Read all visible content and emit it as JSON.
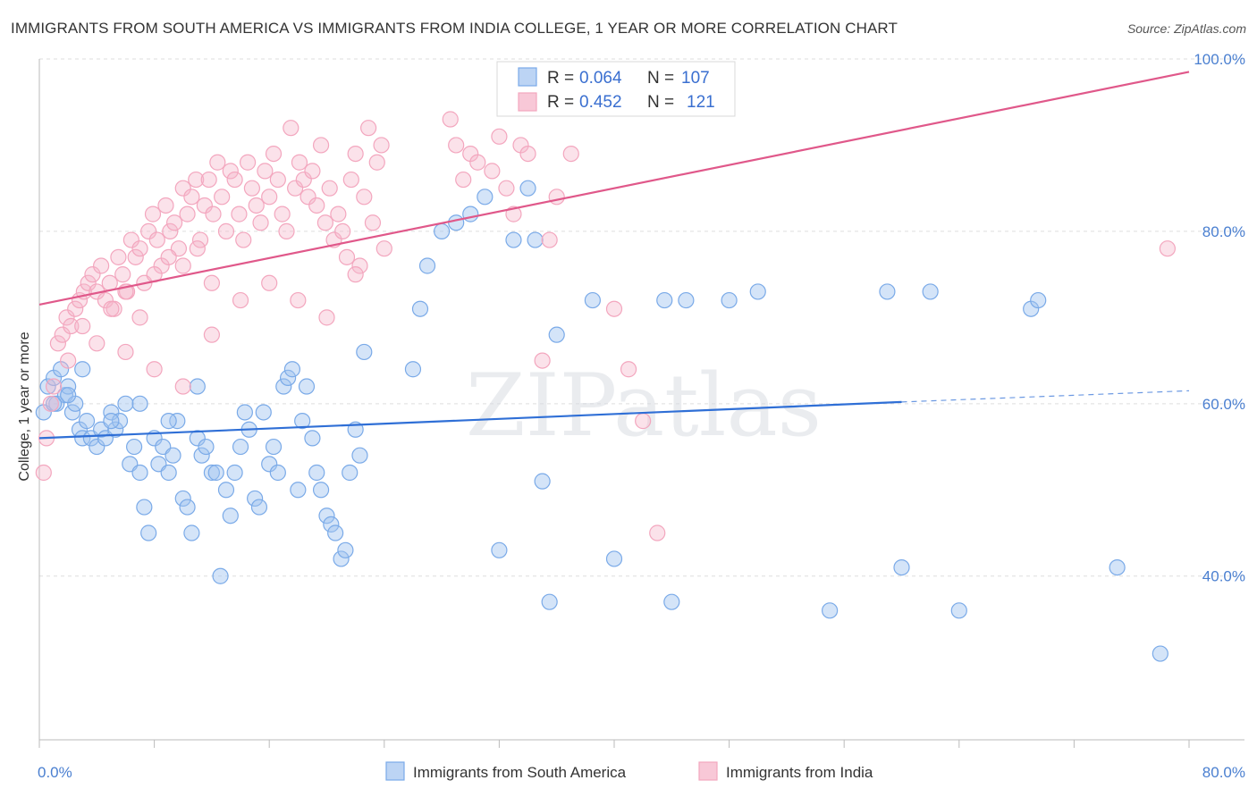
{
  "title": "IMMIGRANTS FROM SOUTH AMERICA VS IMMIGRANTS FROM INDIA COLLEGE, 1 YEAR OR MORE CORRELATION CHART",
  "source": "Source: ZipAtlas.com",
  "watermark": "ZIPatlas",
  "chart_data": {
    "type": "scatter",
    "ylabel": "College, 1 year or more",
    "x_tick_labels": [
      "0.0%",
      "80.0%"
    ],
    "y_tick_labels": [
      "40.0%",
      "60.0%",
      "80.0%",
      "100.0%"
    ],
    "xlim": [
      0,
      80
    ],
    "ylim": [
      21,
      100
    ],
    "legend_position": "top-center",
    "stats": [
      {
        "r_label": "R = ",
        "r_value": "0.064",
        "n_label": "N = ",
        "n_value": "107"
      },
      {
        "r_label": "R = ",
        "r_value": "0.452",
        "n_label": "N = ",
        "n_value": "121"
      }
    ],
    "series": [
      {
        "name": "Immigrants from South America",
        "color": "#7aaae8",
        "line_color": "#2f6fd6",
        "trend": {
          "x0": 0,
          "y0": 56.0,
          "x1": 60,
          "y1": 60.2,
          "dash_to_x": 80,
          "dash_to_y": 61.5
        },
        "points": [
          [
            0.3,
            59
          ],
          [
            0.6,
            62
          ],
          [
            1,
            63
          ],
          [
            1.2,
            60
          ],
          [
            1.5,
            64
          ],
          [
            1.8,
            61
          ],
          [
            2,
            62
          ],
          [
            2.3,
            59
          ],
          [
            2.5,
            60
          ],
          [
            2.8,
            57
          ],
          [
            3,
            56
          ],
          [
            3.3,
            58
          ],
          [
            3.6,
            56
          ],
          [
            4,
            55
          ],
          [
            4.3,
            57
          ],
          [
            4.6,
            56
          ],
          [
            5,
            59
          ],
          [
            5.3,
            57
          ],
          [
            5.6,
            58
          ],
          [
            6,
            60
          ],
          [
            6.3,
            53
          ],
          [
            6.6,
            55
          ],
          [
            7,
            52
          ],
          [
            7.3,
            48
          ],
          [
            7.6,
            45
          ],
          [
            8,
            56
          ],
          [
            8.3,
            53
          ],
          [
            8.6,
            55
          ],
          [
            9,
            52
          ],
          [
            9.3,
            54
          ],
          [
            9.6,
            58
          ],
          [
            10,
            49
          ],
          [
            10.3,
            48
          ],
          [
            10.6,
            45
          ],
          [
            11,
            56
          ],
          [
            11.3,
            54
          ],
          [
            11.6,
            55
          ],
          [
            12,
            52
          ],
          [
            12.3,
            52
          ],
          [
            12.6,
            40
          ],
          [
            13,
            50
          ],
          [
            13.3,
            47
          ],
          [
            13.6,
            52
          ],
          [
            14,
            55
          ],
          [
            14.3,
            59
          ],
          [
            14.6,
            57
          ],
          [
            15,
            49
          ],
          [
            15.3,
            48
          ],
          [
            15.6,
            59
          ],
          [
            16,
            53
          ],
          [
            16.3,
            55
          ],
          [
            16.6,
            52
          ],
          [
            17,
            62
          ],
          [
            17.3,
            63
          ],
          [
            17.6,
            64
          ],
          [
            18,
            50
          ],
          [
            18.3,
            58
          ],
          [
            18.6,
            62
          ],
          [
            19,
            56
          ],
          [
            19.3,
            52
          ],
          [
            19.6,
            50
          ],
          [
            20,
            47
          ],
          [
            20.3,
            46
          ],
          [
            20.6,
            45
          ],
          [
            21,
            42
          ],
          [
            21.3,
            43
          ],
          [
            21.6,
            52
          ],
          [
            22,
            57
          ],
          [
            22.3,
            54
          ],
          [
            22.6,
            66
          ],
          [
            26,
            64
          ],
          [
            26.5,
            71
          ],
          [
            27,
            76
          ],
          [
            28,
            80
          ],
          [
            29,
            81
          ],
          [
            30,
            82
          ],
          [
            31,
            84
          ],
          [
            32,
            43
          ],
          [
            33,
            79
          ],
          [
            34,
            85
          ],
          [
            34.5,
            79
          ],
          [
            35,
            51
          ],
          [
            35.5,
            37
          ],
          [
            36,
            68
          ],
          [
            38.5,
            72
          ],
          [
            40,
            42
          ],
          [
            43.5,
            72
          ],
          [
            44,
            37
          ],
          [
            45,
            72
          ],
          [
            48,
            72
          ],
          [
            50,
            73
          ],
          [
            55,
            36
          ],
          [
            59,
            73
          ],
          [
            60,
            41
          ],
          [
            62,
            73
          ],
          [
            64,
            36
          ],
          [
            69,
            71
          ],
          [
            69.5,
            72
          ],
          [
            75,
            41
          ],
          [
            78,
            31
          ],
          [
            3,
            64
          ],
          [
            5,
            58
          ],
          [
            7,
            60
          ],
          [
            9,
            58
          ],
          [
            11,
            62
          ],
          [
            2,
            61
          ],
          [
            1,
            60
          ]
        ]
      },
      {
        "name": "Immigrants from India",
        "color": "#f3a6be",
        "line_color": "#e0588a",
        "trend": {
          "x0": 0,
          "y0": 71.5,
          "x1": 80,
          "y1": 98.5
        },
        "points": [
          [
            0.3,
            52
          ],
          [
            0.5,
            56
          ],
          [
            0.8,
            60
          ],
          [
            1,
            62
          ],
          [
            1.3,
            67
          ],
          [
            1.6,
            68
          ],
          [
            1.9,
            70
          ],
          [
            2.2,
            69
          ],
          [
            2.5,
            71
          ],
          [
            2.8,
            72
          ],
          [
            3.1,
            73
          ],
          [
            3.4,
            74
          ],
          [
            3.7,
            75
          ],
          [
            4,
            73
          ],
          [
            4.3,
            76
          ],
          [
            4.6,
            72
          ],
          [
            4.9,
            74
          ],
          [
            5.2,
            71
          ],
          [
            5.5,
            77
          ],
          [
            5.8,
            75
          ],
          [
            6.1,
            73
          ],
          [
            6.4,
            79
          ],
          [
            6.7,
            77
          ],
          [
            7,
            78
          ],
          [
            7.3,
            74
          ],
          [
            7.6,
            80
          ],
          [
            7.9,
            82
          ],
          [
            8.2,
            79
          ],
          [
            8.5,
            76
          ],
          [
            8.8,
            83
          ],
          [
            9.1,
            80
          ],
          [
            9.4,
            81
          ],
          [
            9.7,
            78
          ],
          [
            10,
            85
          ],
          [
            10.3,
            82
          ],
          [
            10.6,
            84
          ],
          [
            10.9,
            86
          ],
          [
            11.2,
            79
          ],
          [
            11.5,
            83
          ],
          [
            11.8,
            86
          ],
          [
            12.1,
            82
          ],
          [
            12.4,
            88
          ],
          [
            12.7,
            84
          ],
          [
            13,
            80
          ],
          [
            13.3,
            87
          ],
          [
            13.6,
            86
          ],
          [
            13.9,
            82
          ],
          [
            14.2,
            79
          ],
          [
            14.5,
            88
          ],
          [
            14.8,
            85
          ],
          [
            15.1,
            83
          ],
          [
            15.4,
            81
          ],
          [
            15.7,
            87
          ],
          [
            16,
            84
          ],
          [
            16.3,
            89
          ],
          [
            16.6,
            86
          ],
          [
            16.9,
            82
          ],
          [
            17.2,
            80
          ],
          [
            17.5,
            92
          ],
          [
            17.8,
            85
          ],
          [
            18.1,
            88
          ],
          [
            18.4,
            86
          ],
          [
            18.7,
            84
          ],
          [
            19,
            87
          ],
          [
            19.3,
            83
          ],
          [
            19.6,
            90
          ],
          [
            19.9,
            81
          ],
          [
            20.2,
            85
          ],
          [
            20.5,
            79
          ],
          [
            20.8,
            82
          ],
          [
            21.1,
            80
          ],
          [
            21.4,
            77
          ],
          [
            21.7,
            86
          ],
          [
            22,
            89
          ],
          [
            22.3,
            76
          ],
          [
            22.6,
            84
          ],
          [
            22.9,
            92
          ],
          [
            23.2,
            81
          ],
          [
            23.5,
            88
          ],
          [
            23.8,
            90
          ],
          [
            28.6,
            93
          ],
          [
            29,
            90
          ],
          [
            29.5,
            86
          ],
          [
            30,
            89
          ],
          [
            30.5,
            88
          ],
          [
            31.5,
            87
          ],
          [
            32,
            91
          ],
          [
            32.5,
            85
          ],
          [
            33,
            82
          ],
          [
            33.5,
            90
          ],
          [
            34,
            89
          ],
          [
            35,
            65
          ],
          [
            35.5,
            79
          ],
          [
            36,
            84
          ],
          [
            37,
            89
          ],
          [
            78.5,
            78
          ],
          [
            40,
            71
          ],
          [
            41,
            64
          ],
          [
            42,
            58
          ],
          [
            43,
            45
          ],
          [
            6,
            66
          ],
          [
            8,
            64
          ],
          [
            10,
            62
          ],
          [
            12,
            68
          ],
          [
            14,
            72
          ],
          [
            16,
            74
          ],
          [
            18,
            72
          ],
          [
            20,
            70
          ],
          [
            22,
            75
          ],
          [
            24,
            78
          ],
          [
            2,
            65
          ],
          [
            3,
            69
          ],
          [
            4,
            67
          ],
          [
            5,
            71
          ],
          [
            6,
            73
          ],
          [
            7,
            70
          ],
          [
            8,
            75
          ],
          [
            9,
            77
          ],
          [
            10,
            76
          ],
          [
            11,
            78
          ],
          [
            12,
            74
          ]
        ]
      }
    ]
  }
}
